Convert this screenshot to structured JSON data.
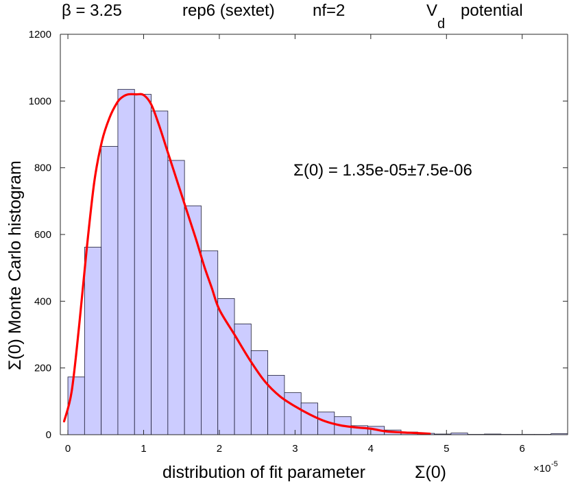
{
  "chart_data": {
    "type": "bar",
    "title_parts": {
      "beta": "β = 3.25",
      "rep": "rep6 (sextet)",
      "nf": "nf=2",
      "pot_main": "V",
      "pot_sub": "d",
      "pot_word": "potential"
    },
    "xlabel": "distribution of fit parameter",
    "xlabel_symbol": "Σ(0)",
    "ylabel": "Σ(0)   Monte Carlo histogram",
    "x_exponent_base": "×10",
    "x_exponent": "-5",
    "annotation": "Σ(0) = 1.35e-05±7.5e-06",
    "xlim": [
      -0.1,
      6.6
    ],
    "ylim": [
      0,
      1200
    ],
    "xticks": [
      0,
      1,
      2,
      3,
      4,
      5,
      6
    ],
    "yticks": [
      0,
      200,
      400,
      600,
      800,
      1000,
      1200
    ],
    "bin_width": 0.22,
    "bins": [
      {
        "x0": 0.0,
        "count": 173
      },
      {
        "x0": 0.22,
        "count": 562
      },
      {
        "x0": 0.44,
        "count": 864
      },
      {
        "x0": 0.66,
        "count": 1035
      },
      {
        "x0": 0.88,
        "count": 1020
      },
      {
        "x0": 1.1,
        "count": 970
      },
      {
        "x0": 1.32,
        "count": 822
      },
      {
        "x0": 1.54,
        "count": 686
      },
      {
        "x0": 1.76,
        "count": 551
      },
      {
        "x0": 1.98,
        "count": 408
      },
      {
        "x0": 2.2,
        "count": 332
      },
      {
        "x0": 2.42,
        "count": 252
      },
      {
        "x0": 2.64,
        "count": 178
      },
      {
        "x0": 2.86,
        "count": 126
      },
      {
        "x0": 3.08,
        "count": 95
      },
      {
        "x0": 3.3,
        "count": 68
      },
      {
        "x0": 3.52,
        "count": 54
      },
      {
        "x0": 3.74,
        "count": 27
      },
      {
        "x0": 3.96,
        "count": 25
      },
      {
        "x0": 4.18,
        "count": 14
      },
      {
        "x0": 4.4,
        "count": 8
      },
      {
        "x0": 4.62,
        "count": 4
      },
      {
        "x0": 4.84,
        "count": 2
      },
      {
        "x0": 5.06,
        "count": 5
      },
      {
        "x0": 5.28,
        "count": 1
      },
      {
        "x0": 5.5,
        "count": 2
      },
      {
        "x0": 5.72,
        "count": 1
      },
      {
        "x0": 5.94,
        "count": 1
      },
      {
        "x0": 6.16,
        "count": 1
      },
      {
        "x0": 6.38,
        "count": 3
      }
    ],
    "fit_curve": {
      "color": "#ff0000",
      "x": [
        -0.05,
        0.05,
        0.15,
        0.25,
        0.35,
        0.45,
        0.55,
        0.65,
        0.72,
        0.8,
        0.9,
        1.0,
        1.1,
        1.2,
        1.3,
        1.4,
        1.5,
        1.6,
        1.7,
        1.8,
        1.9,
        2.0,
        2.2,
        2.4,
        2.6,
        2.8,
        3.0,
        3.2,
        3.4,
        3.6,
        3.8,
        4.0,
        4.2,
        4.4,
        4.6,
        4.78
      ],
      "y": [
        40,
        130,
        330,
        560,
        760,
        880,
        950,
        995,
        1012,
        1020,
        1020,
        1018,
        990,
        930,
        860,
        790,
        720,
        650,
        580,
        505,
        440,
        375,
        300,
        225,
        160,
        115,
        85,
        60,
        40,
        28,
        22,
        18,
        10,
        7,
        5,
        3
      ]
    },
    "colors": {
      "bar_fill": "#ccccff",
      "bar_stroke": "#1a1a33",
      "curve": "#ff0000"
    }
  }
}
